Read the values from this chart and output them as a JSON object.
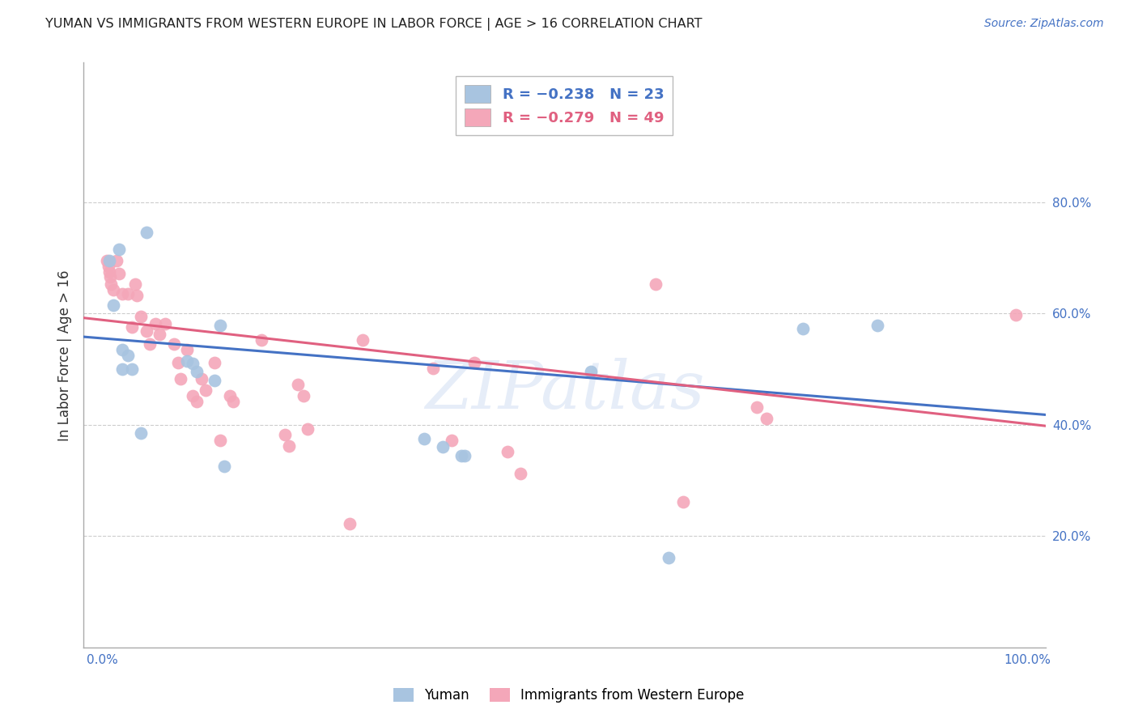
{
  "title": "YUMAN VS IMMIGRANTS FROM WESTERN EUROPE IN LABOR FORCE | AGE > 16 CORRELATION CHART",
  "source_text": "Source: ZipAtlas.com",
  "ylabel": "In Labor Force | Age > 16",
  "xlim": [
    -0.02,
    1.02
  ],
  "ylim": [
    0.0,
    1.05
  ],
  "right_yticks": [
    0.0,
    0.2,
    0.4,
    0.6,
    0.8
  ],
  "right_ytick_labels": [
    "",
    "20.0%",
    "40.0%",
    "60.0%",
    "80.0%"
  ],
  "xticks": [
    0.0,
    0.1,
    0.2,
    0.3,
    0.4,
    0.5,
    0.6,
    0.7,
    0.8,
    0.9,
    1.0
  ],
  "xtick_labels": [
    "0.0%",
    "",
    "",
    "",
    "",
    "",
    "",
    "",
    "",
    "",
    "100.0%"
  ],
  "blue_color": "#a8c4e0",
  "pink_color": "#f4a7b9",
  "blue_line_color": "#4472c4",
  "pink_line_color": "#e06080",
  "watermark": "ZIPatlas",
  "blue_points_x": [
    0.008,
    0.012,
    0.018,
    0.022,
    0.022,
    0.028,
    0.032,
    0.042,
    0.048,
    0.092,
    0.098,
    0.102,
    0.122,
    0.128,
    0.132,
    0.348,
    0.368,
    0.388,
    0.392,
    0.528,
    0.612,
    0.758,
    0.838
  ],
  "blue_points_y": [
    0.695,
    0.615,
    0.715,
    0.535,
    0.5,
    0.525,
    0.5,
    0.385,
    0.745,
    0.515,
    0.51,
    0.495,
    0.48,
    0.578,
    0.325,
    0.375,
    0.36,
    0.345,
    0.345,
    0.495,
    0.162,
    0.572,
    0.578
  ],
  "pink_points_x": [
    0.005,
    0.007,
    0.008,
    0.009,
    0.01,
    0.012,
    0.016,
    0.018,
    0.022,
    0.028,
    0.032,
    0.036,
    0.038,
    0.042,
    0.048,
    0.052,
    0.058,
    0.062,
    0.068,
    0.078,
    0.082,
    0.085,
    0.092,
    0.098,
    0.102,
    0.108,
    0.112,
    0.122,
    0.128,
    0.138,
    0.142,
    0.172,
    0.198,
    0.202,
    0.212,
    0.218,
    0.222,
    0.268,
    0.282,
    0.358,
    0.378,
    0.402,
    0.438,
    0.452,
    0.598,
    0.628,
    0.708,
    0.718,
    0.988
  ],
  "pink_points_y": [
    0.695,
    0.685,
    0.675,
    0.665,
    0.652,
    0.642,
    0.695,
    0.672,
    0.635,
    0.635,
    0.575,
    0.652,
    0.632,
    0.595,
    0.568,
    0.545,
    0.582,
    0.562,
    0.582,
    0.545,
    0.512,
    0.482,
    0.535,
    0.452,
    0.442,
    0.482,
    0.462,
    0.512,
    0.372,
    0.452,
    0.442,
    0.552,
    0.382,
    0.362,
    0.472,
    0.452,
    0.392,
    0.222,
    0.552,
    0.502,
    0.372,
    0.512,
    0.352,
    0.312,
    0.652,
    0.262,
    0.432,
    0.412,
    0.598
  ],
  "blue_line_y_start": 0.558,
  "blue_line_y_end": 0.418,
  "pink_line_y_start": 0.592,
  "pink_line_y_end": 0.398
}
